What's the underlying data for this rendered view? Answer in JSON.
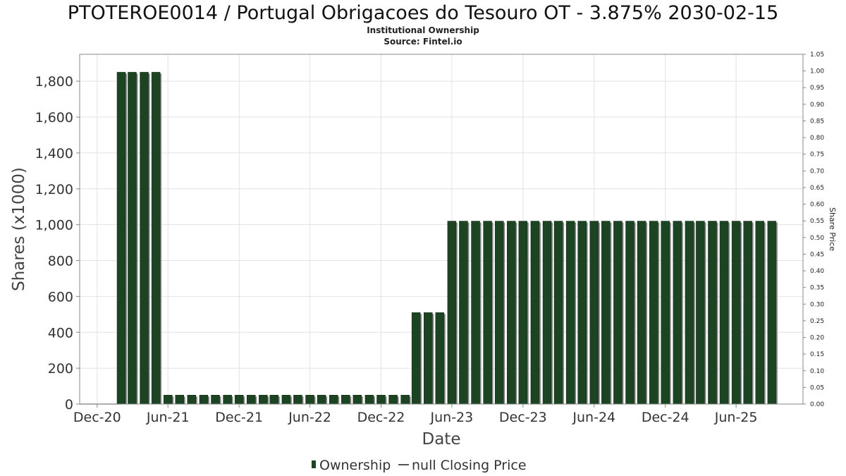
{
  "chart_data": {
    "type": "bar",
    "title": "PTOTEROE0014 / Portugal Obrigacoes do Tesouro OT - 3.875% 2030-02-15",
    "subtitle_lines": [
      "Institutional Ownership",
      "Source: Fintel.io"
    ],
    "xlabel": "Date",
    "ylabel": "Shares (x1000)",
    "ylabel_right": "Share Price",
    "ylim": [
      0,
      1950
    ],
    "ylim_right": [
      0,
      1.05
    ],
    "x_range": [
      "2020-10-17",
      "2025-11-20"
    ],
    "yticks_left": [
      "0",
      "200",
      "400",
      "600",
      "800",
      "1,000",
      "1,200",
      "1,400",
      "1,600",
      "1,800"
    ],
    "yticks_left_values": [
      0,
      200,
      400,
      600,
      800,
      1000,
      1200,
      1400,
      1600,
      1800
    ],
    "yticks_right": [
      "0.00",
      "0.05",
      "0.10",
      "0.15",
      "0.20",
      "0.25",
      "0.30",
      "0.35",
      "0.40",
      "0.45",
      "0.50",
      "0.55",
      "0.60",
      "0.65",
      "0.70",
      "0.75",
      "0.80",
      "0.85",
      "0.90",
      "0.95",
      "1.00",
      "1.05"
    ],
    "yticks_right_values": [
      0,
      0.05,
      0.1,
      0.15,
      0.2,
      0.25,
      0.3,
      0.35,
      0.4,
      0.45,
      0.5,
      0.55,
      0.6,
      0.65,
      0.7,
      0.75,
      0.8,
      0.85,
      0.9,
      0.95,
      1.0,
      1.05
    ],
    "xticks": [
      {
        "label": "Dec-20",
        "date": "2020-12-01"
      },
      {
        "label": "Jun-21",
        "date": "2021-06-01"
      },
      {
        "label": "Dec-21",
        "date": "2021-12-01"
      },
      {
        "label": "Jun-22",
        "date": "2022-06-01"
      },
      {
        "label": "Dec-22",
        "date": "2022-12-01"
      },
      {
        "label": "Jun-23",
        "date": "2023-06-01"
      },
      {
        "label": "Dec-23",
        "date": "2023-12-01"
      },
      {
        "label": "Jun-24",
        "date": "2024-06-01"
      },
      {
        "label": "Dec-24",
        "date": "2024-12-01"
      },
      {
        "label": "Jun-25",
        "date": "2025-06-01"
      }
    ],
    "grid": true,
    "legend_position": "bottom-center",
    "series": [
      {
        "name": "Ownership",
        "color": "#1c4422",
        "dates": [
          "2021-02-01",
          "2021-03-01",
          "2021-04-01",
          "2021-05-01",
          "2021-06-01",
          "2021-07-01",
          "2021-08-01",
          "2021-09-01",
          "2021-10-01",
          "2021-11-01",
          "2021-12-01",
          "2022-01-01",
          "2022-02-01",
          "2022-03-01",
          "2022-04-01",
          "2022-05-01",
          "2022-06-01",
          "2022-07-01",
          "2022-08-01",
          "2022-09-01",
          "2022-10-01",
          "2022-11-01",
          "2022-12-01",
          "2023-01-01",
          "2023-02-01",
          "2023-03-01",
          "2023-04-01",
          "2023-05-01",
          "2023-06-01",
          "2023-07-01",
          "2023-08-01",
          "2023-09-01",
          "2023-10-01",
          "2023-11-01",
          "2023-12-01",
          "2024-01-01",
          "2024-02-01",
          "2024-03-01",
          "2024-04-01",
          "2024-05-01",
          "2024-06-01",
          "2024-07-01",
          "2024-08-01",
          "2024-09-01",
          "2024-10-01",
          "2024-11-01",
          "2024-12-01",
          "2025-01-01",
          "2025-02-01",
          "2025-03-01",
          "2025-04-01",
          "2025-05-01",
          "2025-06-01",
          "2025-07-01",
          "2025-08-01",
          "2025-09-01"
        ],
        "values": [
          1850,
          1850,
          1850,
          1850,
          50,
          50,
          50,
          50,
          50,
          50,
          50,
          50,
          50,
          50,
          50,
          50,
          50,
          50,
          50,
          50,
          50,
          50,
          50,
          50,
          50,
          510,
          510,
          510,
          1020,
          1020,
          1020,
          1020,
          1020,
          1020,
          1020,
          1020,
          1020,
          1020,
          1020,
          1020,
          1020,
          1020,
          1020,
          1020,
          1020,
          1020,
          1020,
          1020,
          1020,
          1020,
          1020,
          1020,
          1020,
          1020,
          1020,
          1020
        ]
      },
      {
        "name": "null Closing Price",
        "color": "#555555",
        "values": []
      }
    ]
  }
}
